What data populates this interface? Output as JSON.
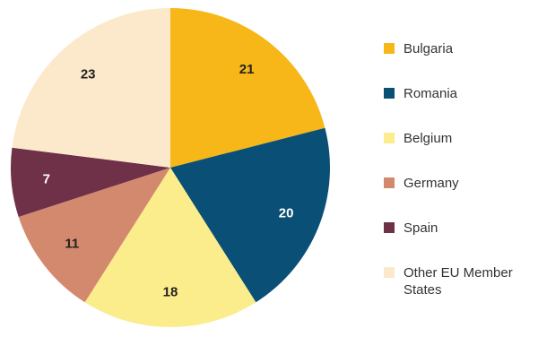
{
  "chart_data": {
    "type": "pie",
    "title": "",
    "categories": [
      "Bulgaria",
      "Romania",
      "Belgium",
      "Germany",
      "Spain",
      "Other EU Member States"
    ],
    "values": [
      21,
      20,
      18,
      11,
      7,
      23
    ],
    "data_labels": [
      "21",
      "20",
      "18",
      "11",
      "7",
      "23"
    ],
    "colors": [
      "#F7B718",
      "#0A4F75",
      "#FBEC8C",
      "#D3896D",
      "#6E3148",
      "#FCE9CB"
    ],
    "label_colors": [
      "#222222",
      "#ffffff",
      "#222222",
      "#222222",
      "#ffffff",
      "#222222"
    ],
    "start_angle_deg": 0,
    "direction": "clockwise",
    "legend": {
      "position": "right",
      "entries": [
        {
          "label_lines": [
            "Bulgaria"
          ]
        },
        {
          "label_lines": [
            "Romania"
          ]
        },
        {
          "label_lines": [
            "Belgium"
          ]
        },
        {
          "label_lines": [
            "Germany"
          ]
        },
        {
          "label_lines": [
            "Spain"
          ]
        },
        {
          "label_lines": [
            "Other EU Member",
            "States"
          ]
        }
      ]
    }
  }
}
